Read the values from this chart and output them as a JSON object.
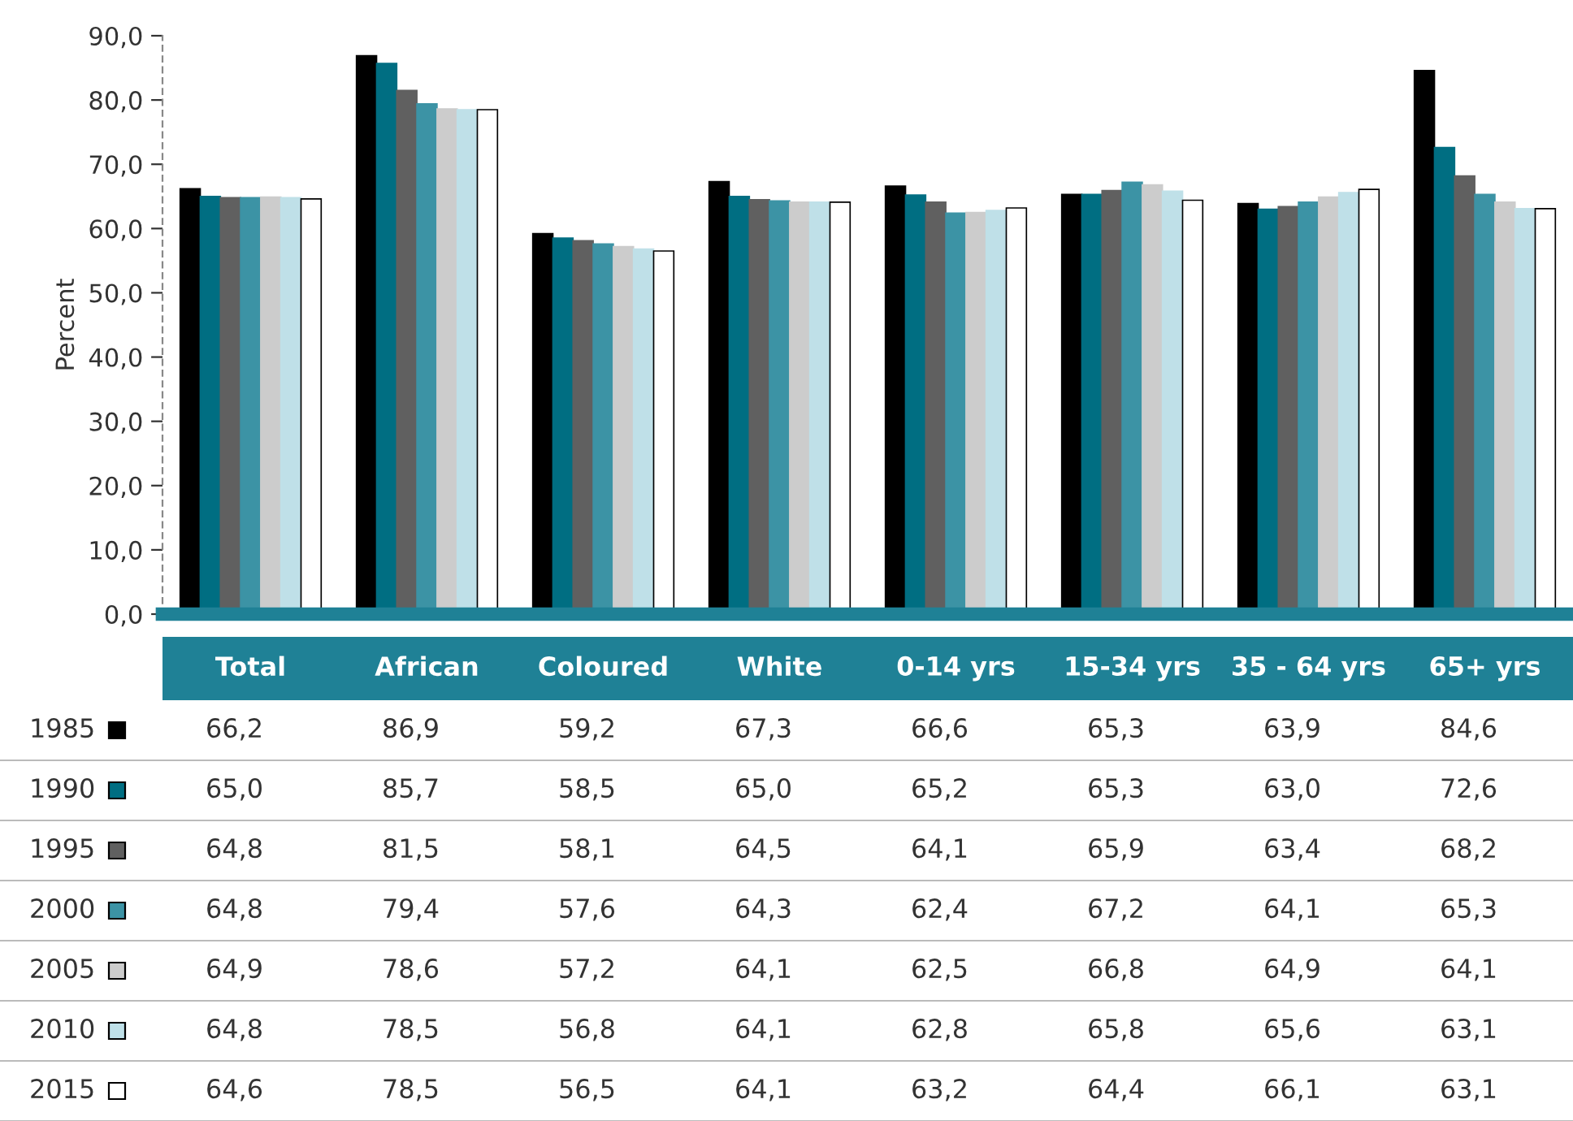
{
  "chart_data": {
    "type": "bar",
    "ylabel": "Percent",
    "categories": [
      "Total",
      "African",
      "Coloured",
      "White",
      "0-14 yrs",
      "15-34 yrs",
      "35 - 64 yrs",
      "65+ yrs"
    ],
    "series": [
      {
        "name": "1985",
        "color": "#000000",
        "values": [
          66.2,
          86.9,
          59.2,
          67.3,
          66.6,
          65.3,
          63.9,
          84.6
        ],
        "value_labels": [
          "66,2",
          "86,9",
          "59,2",
          "67,3",
          "66,6",
          "65,3",
          "63,9",
          "84,6"
        ]
      },
      {
        "name": "1990",
        "color": "#006e82",
        "values": [
          65.0,
          85.7,
          58.5,
          65.0,
          65.2,
          65.3,
          63.0,
          72.6
        ],
        "value_labels": [
          "65,0",
          "85,7",
          "58,5",
          "65,0",
          "65,2",
          "65,3",
          "63,0",
          "72,6"
        ]
      },
      {
        "name": "1995",
        "color": "#606060",
        "values": [
          64.8,
          81.5,
          58.1,
          64.5,
          64.1,
          65.9,
          63.4,
          68.2
        ],
        "value_labels": [
          "64,8",
          "81,5",
          "58,1",
          "64,5",
          "64,1",
          "65,9",
          "63,4",
          "68,2"
        ]
      },
      {
        "name": "2000",
        "color": "#3c93a5",
        "values": [
          64.8,
          79.4,
          57.6,
          64.3,
          62.4,
          67.2,
          64.1,
          65.3
        ],
        "value_labels": [
          "64,8",
          "79,4",
          "57,6",
          "64,3",
          "62,4",
          "67,2",
          "64,1",
          "65,3"
        ]
      },
      {
        "name": "2005",
        "color": "#cccccc",
        "values": [
          64.9,
          78.6,
          57.2,
          64.1,
          62.5,
          66.8,
          64.9,
          64.1
        ],
        "value_labels": [
          "64,9",
          "78,6",
          "57,2",
          "64,1",
          "62,5",
          "66,8",
          "64,9",
          "64,1"
        ]
      },
      {
        "name": "2010",
        "color": "#bfe0e8",
        "values": [
          64.8,
          78.5,
          56.8,
          64.1,
          62.8,
          65.8,
          65.6,
          63.1
        ],
        "value_labels": [
          "64,8",
          "78,5",
          "56,8",
          "64,1",
          "62,8",
          "65,8",
          "65,6",
          "63,1"
        ]
      },
      {
        "name": "2015",
        "color": "#ffffff",
        "values": [
          64.6,
          78.5,
          56.5,
          64.1,
          63.2,
          64.4,
          66.1,
          63.1
        ],
        "value_labels": [
          "64,6",
          "78,5",
          "56,5",
          "64,1",
          "63,2",
          "64,4",
          "66,1",
          "63,1"
        ]
      }
    ],
    "ylim": [
      0,
      90
    ],
    "yticks": [
      {
        "value": 0,
        "label": "0,0"
      },
      {
        "value": 10,
        "label": "10,0"
      },
      {
        "value": 20,
        "label": "20,0"
      },
      {
        "value": 30,
        "label": "30,0"
      },
      {
        "value": 40,
        "label": "40,0"
      },
      {
        "value": 50,
        "label": "50,0"
      },
      {
        "value": 60,
        "label": "60,0"
      },
      {
        "value": 70,
        "label": "70,0"
      },
      {
        "value": 80,
        "label": "80,0"
      },
      {
        "value": 90,
        "label": "90,0"
      }
    ],
    "grid": false,
    "legend": "bottom left"
  }
}
